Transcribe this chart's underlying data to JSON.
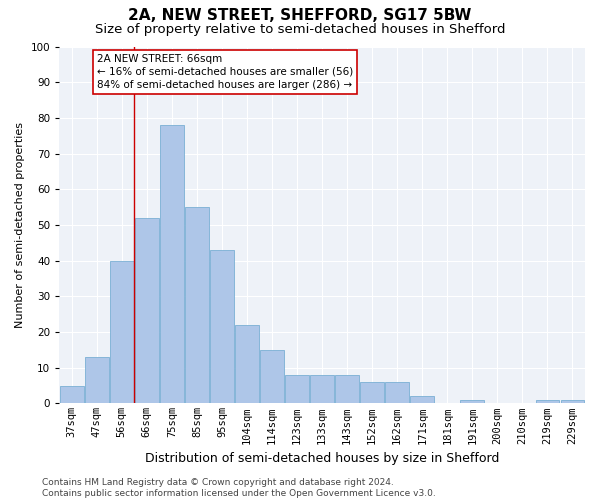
{
  "title": "2A, NEW STREET, SHEFFORD, SG17 5BW",
  "subtitle": "Size of property relative to semi-detached houses in Shefford",
  "xlabel": "Distribution of semi-detached houses by size in Shefford",
  "ylabel": "Number of semi-detached properties",
  "categories": [
    "37sqm",
    "47sqm",
    "56sqm",
    "66sqm",
    "75sqm",
    "85sqm",
    "95sqm",
    "104sqm",
    "114sqm",
    "123sqm",
    "133sqm",
    "143sqm",
    "152sqm",
    "162sqm",
    "171sqm",
    "181sqm",
    "191sqm",
    "200sqm",
    "210sqm",
    "219sqm",
    "229sqm"
  ],
  "values": [
    5,
    13,
    40,
    52,
    78,
    55,
    43,
    22,
    15,
    8,
    8,
    8,
    6,
    6,
    2,
    0,
    1,
    0,
    0,
    1,
    1
  ],
  "bar_color": "#aec6e8",
  "bar_edge_color": "#7aafd4",
  "highlight_line_color": "#cc0000",
  "annotation_text_line1": "2A NEW STREET: 66sqm",
  "annotation_text_line2": "← 16% of semi-detached houses are smaller (56)",
  "annotation_text_line3": "84% of semi-detached houses are larger (286) →",
  "annotation_box_facecolor": "#ffffff",
  "annotation_box_edgecolor": "#cc0000",
  "ylim": [
    0,
    100
  ],
  "yticks": [
    0,
    10,
    20,
    30,
    40,
    50,
    60,
    70,
    80,
    90,
    100
  ],
  "bg_color": "#eef2f8",
  "fig_facecolor": "#ffffff",
  "title_fontsize": 11,
  "subtitle_fontsize": 9.5,
  "xlabel_fontsize": 9,
  "ylabel_fontsize": 8,
  "tick_fontsize": 7.5,
  "annotation_fontsize": 7.5,
  "footer_fontsize": 6.5,
  "footer": "Contains HM Land Registry data © Crown copyright and database right 2024.\nContains public sector information licensed under the Open Government Licence v3.0."
}
